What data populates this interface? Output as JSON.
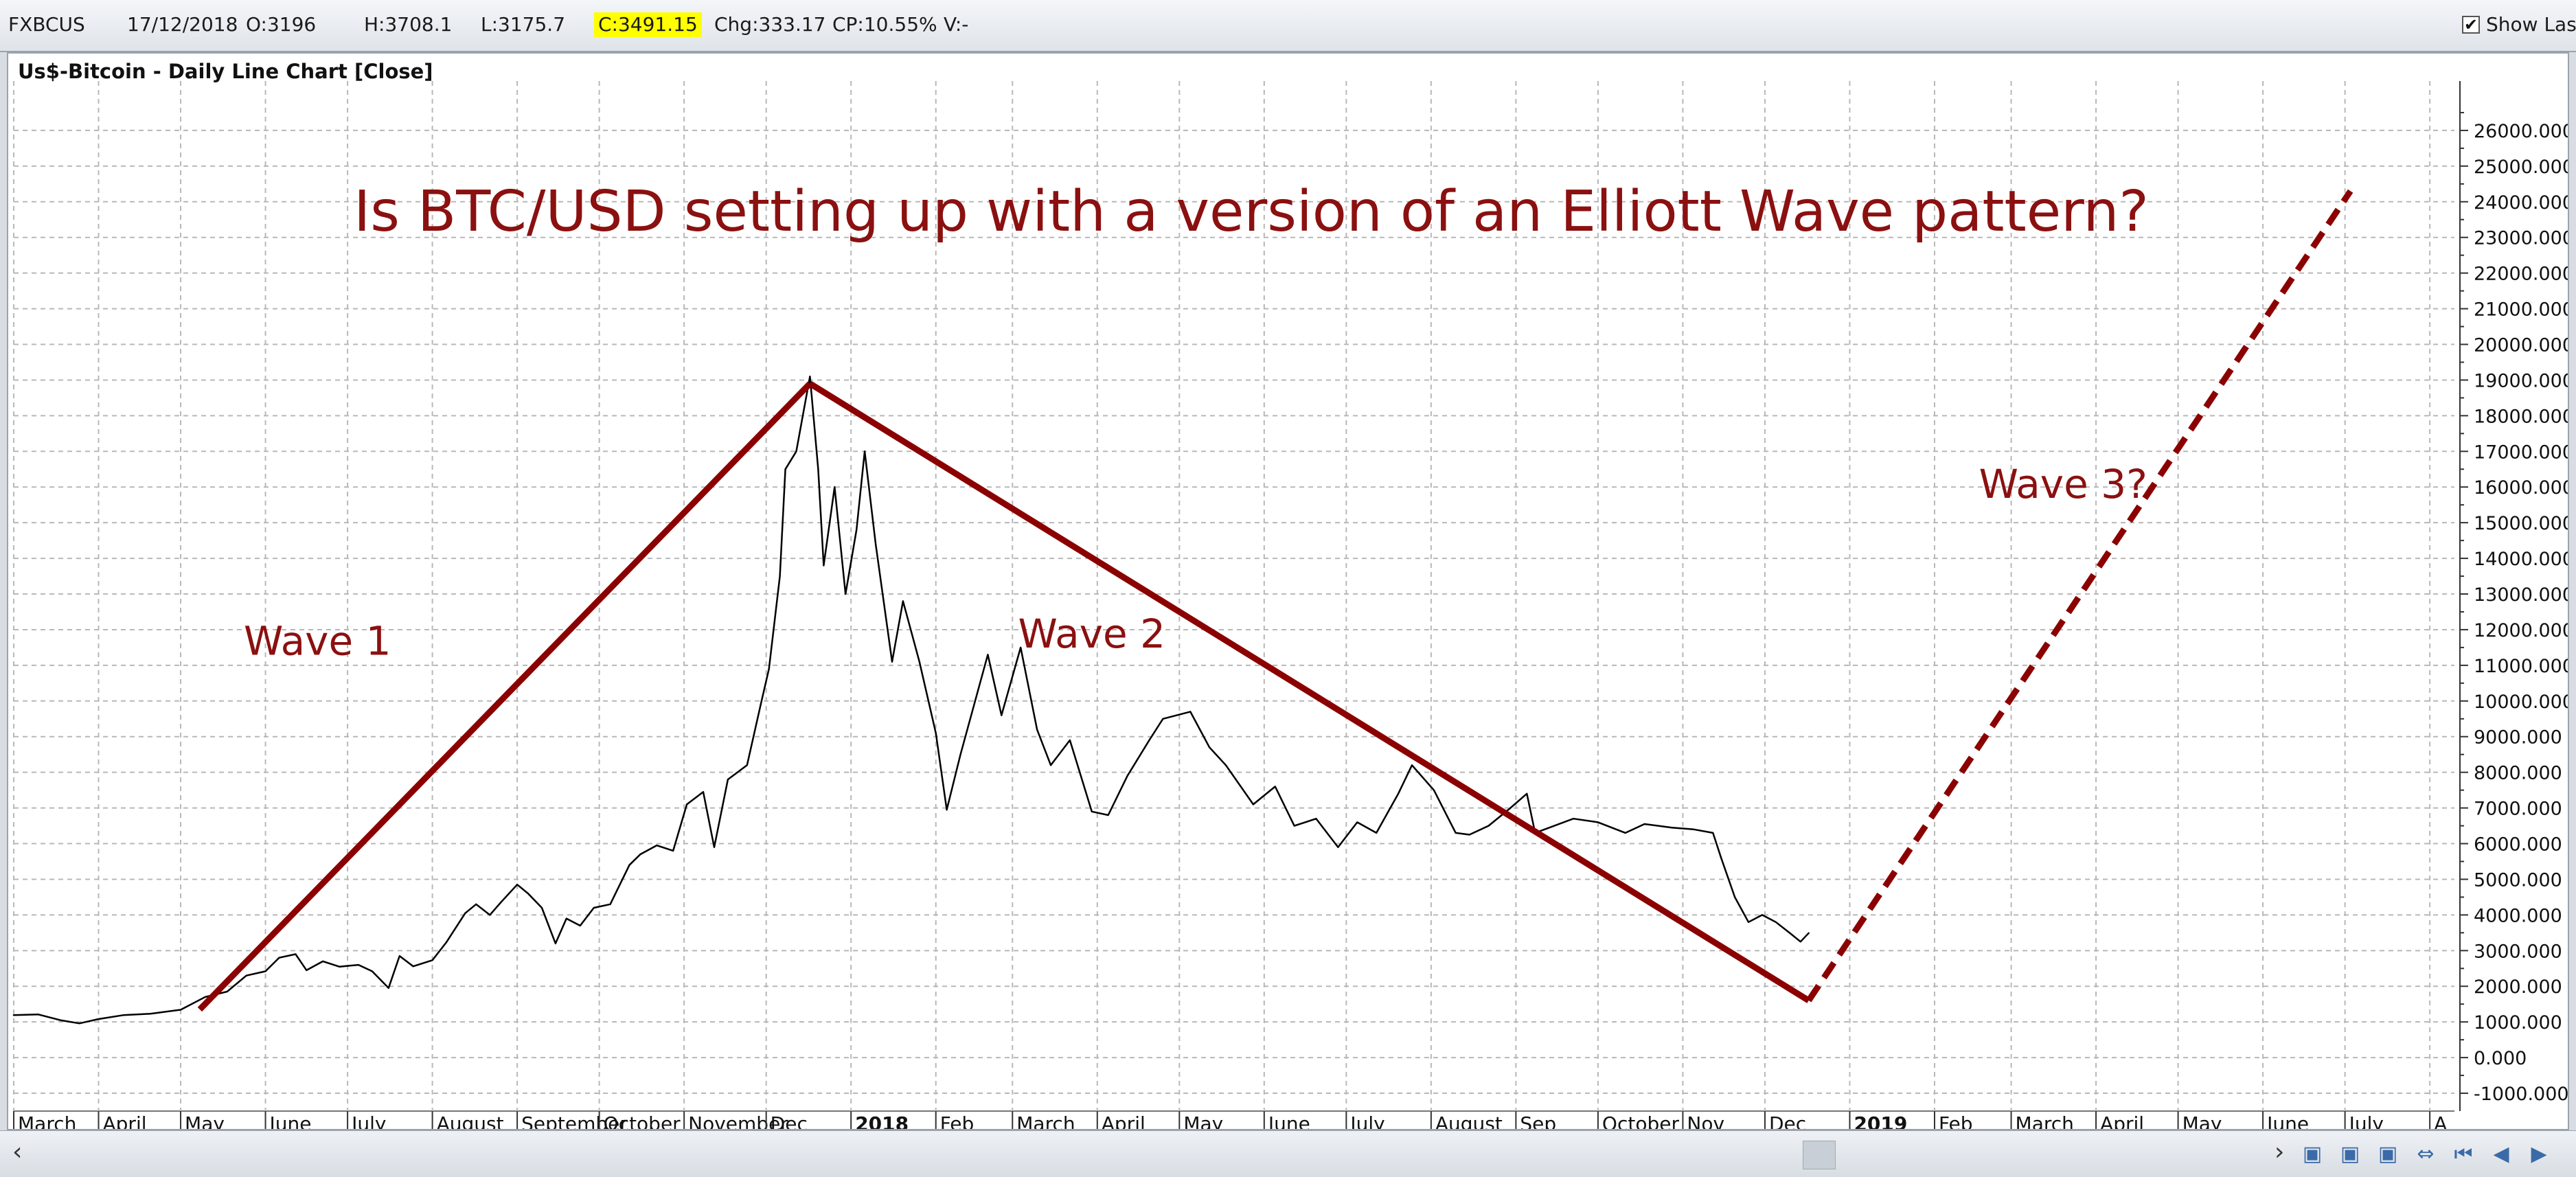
{
  "toolbar": {
    "symbol": "FXBCUS",
    "date": "17/12/2018",
    "open": "O:3196",
    "high": "H:3708.1",
    "low": "L:3175.7",
    "close": "C:3491.15",
    "change": "Chg:333.17",
    "change_pct": "CP:10.55%",
    "volume": "V:-",
    "show_last_label": "Show Last",
    "show_last_checked": true,
    "highlight_color": "#ffff00"
  },
  "chart_data": {
    "type": "line",
    "title": "Us$-Bitcoin - Daily Line Chart [Close]",
    "headline": "Is BTC/USD setting up with a version of an Elliott Wave pattern?",
    "ylim": [
      -1500,
      27000
    ],
    "yticks": [
      -1000,
      0,
      1000,
      2000,
      3000,
      4000,
      5000,
      6000,
      7000,
      8000,
      9000,
      10000,
      11000,
      12000,
      13000,
      14000,
      15000,
      16000,
      17000,
      18000,
      19000,
      20000,
      21000,
      22000,
      23000,
      24000,
      25000,
      26000
    ],
    "ytick_labels": [
      "-1000.000",
      "0.000",
      "1000.000",
      "2000.000",
      "3000.000",
      "4000.000",
      "5000.000",
      "6000.000",
      "7000.000",
      "8000.000",
      "9000.000",
      "10000.000",
      "11000.000",
      "12000.000",
      "13000.000",
      "14000.000",
      "15000.000",
      "16000.000",
      "17000.000",
      "18000.000",
      "19000.000",
      "20000.000",
      "21000.000",
      "22000.000",
      "23000.000",
      "24000.000",
      "25000.000",
      "26000.000"
    ],
    "xlim": [
      "2017-03-01",
      "2019-08-10"
    ],
    "xticks": [
      {
        "date": "2017-03-01",
        "label": "March",
        "bold": false
      },
      {
        "date": "2017-04-01",
        "label": "April",
        "bold": false
      },
      {
        "date": "2017-05-01",
        "label": "May",
        "bold": false
      },
      {
        "date": "2017-06-01",
        "label": "June",
        "bold": false
      },
      {
        "date": "2017-07-01",
        "label": "July",
        "bold": false
      },
      {
        "date": "2017-08-01",
        "label": "August",
        "bold": false
      },
      {
        "date": "2017-09-01",
        "label": "September",
        "bold": false
      },
      {
        "date": "2017-10-01",
        "label": "October",
        "bold": false
      },
      {
        "date": "2017-11-01",
        "label": "November",
        "bold": false
      },
      {
        "date": "2017-12-01",
        "label": "Dec",
        "bold": false
      },
      {
        "date": "2018-01-01",
        "label": "2018",
        "bold": true
      },
      {
        "date": "2018-02-01",
        "label": "Feb",
        "bold": false
      },
      {
        "date": "2018-03-01",
        "label": "March",
        "bold": false
      },
      {
        "date": "2018-04-01",
        "label": "April",
        "bold": false
      },
      {
        "date": "2018-05-01",
        "label": "May",
        "bold": false
      },
      {
        "date": "2018-06-01",
        "label": "June",
        "bold": false
      },
      {
        "date": "2018-07-01",
        "label": "July",
        "bold": false
      },
      {
        "date": "2018-08-01",
        "label": "August",
        "bold": false
      },
      {
        "date": "2018-09-01",
        "label": "Sep",
        "bold": false
      },
      {
        "date": "2018-10-01",
        "label": "October",
        "bold": false
      },
      {
        "date": "2018-11-01",
        "label": "Nov",
        "bold": false
      },
      {
        "date": "2018-12-01",
        "label": "Dec",
        "bold": false
      },
      {
        "date": "2019-01-01",
        "label": "2019",
        "bold": true
      },
      {
        "date": "2019-02-01",
        "label": "Feb",
        "bold": false
      },
      {
        "date": "2019-03-01",
        "label": "March",
        "bold": false
      },
      {
        "date": "2019-04-01",
        "label": "April",
        "bold": false
      },
      {
        "date": "2019-05-01",
        "label": "May",
        "bold": false
      },
      {
        "date": "2019-06-01",
        "label": "June",
        "bold": false
      },
      {
        "date": "2019-07-01",
        "label": "July",
        "bold": false
      },
      {
        "date": "2019-08-01",
        "label": "A",
        "bold": false
      }
    ],
    "grid": true,
    "series": [
      {
        "role": "close-price",
        "color": "#000000",
        "points": [
          [
            "2017-03-01",
            1190
          ],
          [
            "2017-03-10",
            1210
          ],
          [
            "2017-03-18",
            1050
          ],
          [
            "2017-03-25",
            960
          ],
          [
            "2017-04-01",
            1080
          ],
          [
            "2017-04-10",
            1190
          ],
          [
            "2017-04-20",
            1230
          ],
          [
            "2017-05-01",
            1340
          ],
          [
            "2017-05-10",
            1700
          ],
          [
            "2017-05-18",
            1850
          ],
          [
            "2017-05-25",
            2300
          ],
          [
            "2017-06-01",
            2420
          ],
          [
            "2017-06-06",
            2800
          ],
          [
            "2017-06-12",
            2900
          ],
          [
            "2017-06-16",
            2450
          ],
          [
            "2017-06-22",
            2700
          ],
          [
            "2017-06-28",
            2550
          ],
          [
            "2017-07-05",
            2600
          ],
          [
            "2017-07-10",
            2420
          ],
          [
            "2017-07-16",
            1950
          ],
          [
            "2017-07-20",
            2850
          ],
          [
            "2017-07-25",
            2560
          ],
          [
            "2017-08-01",
            2730
          ],
          [
            "2017-08-06",
            3220
          ],
          [
            "2017-08-13",
            4050
          ],
          [
            "2017-08-17",
            4300
          ],
          [
            "2017-08-22",
            4000
          ],
          [
            "2017-08-26",
            4350
          ],
          [
            "2017-09-01",
            4850
          ],
          [
            "2017-09-05",
            4600
          ],
          [
            "2017-09-10",
            4200
          ],
          [
            "2017-09-15",
            3200
          ],
          [
            "2017-09-19",
            3900
          ],
          [
            "2017-09-24",
            3700
          ],
          [
            "2017-09-29",
            4200
          ],
          [
            "2017-10-05",
            4300
          ],
          [
            "2017-10-12",
            5400
          ],
          [
            "2017-10-16",
            5700
          ],
          [
            "2017-10-22",
            5950
          ],
          [
            "2017-10-28",
            5800
          ],
          [
            "2017-11-02",
            7100
          ],
          [
            "2017-11-08",
            7450
          ],
          [
            "2017-11-12",
            5900
          ],
          [
            "2017-11-17",
            7800
          ],
          [
            "2017-11-24",
            8200
          ],
          [
            "2017-11-29",
            9900
          ],
          [
            "2017-12-02",
            10900
          ],
          [
            "2017-12-06",
            13500
          ],
          [
            "2017-12-08",
            16500
          ],
          [
            "2017-12-12",
            17000
          ],
          [
            "2017-12-17",
            19100
          ],
          [
            "2017-12-20",
            16500
          ],
          [
            "2017-12-22",
            13800
          ],
          [
            "2017-12-26",
            16000
          ],
          [
            "2017-12-30",
            13000
          ],
          [
            "2018-01-03",
            14800
          ],
          [
            "2018-01-06",
            17000
          ],
          [
            "2018-01-10",
            14400
          ],
          [
            "2018-01-16",
            11100
          ],
          [
            "2018-01-20",
            12800
          ],
          [
            "2018-01-26",
            11100
          ],
          [
            "2018-02-01",
            9100
          ],
          [
            "2018-02-05",
            6950
          ],
          [
            "2018-02-10",
            8500
          ],
          [
            "2018-02-20",
            11300
          ],
          [
            "2018-02-25",
            9600
          ],
          [
            "2018-03-04",
            11500
          ],
          [
            "2018-03-10",
            9200
          ],
          [
            "2018-03-15",
            8200
          ],
          [
            "2018-03-22",
            8900
          ],
          [
            "2018-03-30",
            6900
          ],
          [
            "2018-04-05",
            6800
          ],
          [
            "2018-04-12",
            7900
          ],
          [
            "2018-04-20",
            8900
          ],
          [
            "2018-04-25",
            9500
          ],
          [
            "2018-05-05",
            9700
          ],
          [
            "2018-05-12",
            8700
          ],
          [
            "2018-05-18",
            8200
          ],
          [
            "2018-05-28",
            7100
          ],
          [
            "2018-06-05",
            7600
          ],
          [
            "2018-06-12",
            6500
          ],
          [
            "2018-06-20",
            6700
          ],
          [
            "2018-06-28",
            5900
          ],
          [
            "2018-07-05",
            6600
          ],
          [
            "2018-07-12",
            6300
          ],
          [
            "2018-07-20",
            7400
          ],
          [
            "2018-07-25",
            8200
          ],
          [
            "2018-08-02",
            7500
          ],
          [
            "2018-08-10",
            6300
          ],
          [
            "2018-08-15",
            6250
          ],
          [
            "2018-08-22",
            6500
          ],
          [
            "2018-08-30",
            7000
          ],
          [
            "2018-09-05",
            7400
          ],
          [
            "2018-09-08",
            6300
          ],
          [
            "2018-09-15",
            6500
          ],
          [
            "2018-09-22",
            6700
          ],
          [
            "2018-10-01",
            6600
          ],
          [
            "2018-10-11",
            6300
          ],
          [
            "2018-10-18",
            6550
          ],
          [
            "2018-10-28",
            6450
          ],
          [
            "2018-11-05",
            6400
          ],
          [
            "2018-11-12",
            6300
          ],
          [
            "2018-11-15",
            5600
          ],
          [
            "2018-11-20",
            4500
          ],
          [
            "2018-11-25",
            3800
          ],
          [
            "2018-11-30",
            4000
          ],
          [
            "2018-12-05",
            3800
          ],
          [
            "2018-12-10",
            3500
          ],
          [
            "2018-12-14",
            3250
          ],
          [
            "2018-12-17",
            3491
          ]
        ]
      },
      {
        "role": "wave-1",
        "color": "#8b0000",
        "style": "solid",
        "points": [
          [
            "2017-05-08",
            1350
          ],
          [
            "2017-12-17",
            18900
          ]
        ]
      },
      {
        "role": "wave-2",
        "color": "#8b0000",
        "style": "solid",
        "points": [
          [
            "2017-12-17",
            18900
          ],
          [
            "2018-12-17",
            1600
          ]
        ]
      },
      {
        "role": "wave-3-projection",
        "color": "#8b0000",
        "style": "dashed",
        "points": [
          [
            "2018-12-17",
            1600
          ],
          [
            "2019-07-03",
            24300
          ]
        ]
      }
    ],
    "annotations": [
      {
        "text": "Wave 1",
        "date": "2017-06-20",
        "value": 11300
      },
      {
        "text": "Wave 2",
        "date": "2018-03-30",
        "value": 11500
      },
      {
        "text": "Wave 3?",
        "date": "2019-03-20",
        "value": 15700
      }
    ],
    "annotation_color": "#8b1010"
  }
}
